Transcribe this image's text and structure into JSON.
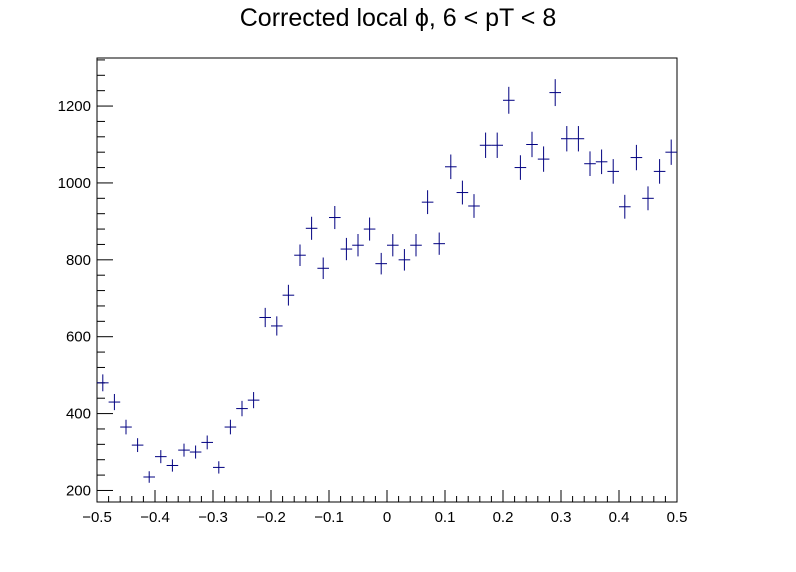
{
  "chart_data": {
    "type": "scatter",
    "title": "Corrected local ϕ, 6 < pT < 8",
    "xlabel": "",
    "ylabel": "",
    "xlim": [
      -0.5,
      0.5
    ],
    "ylim": [
      170,
      1325
    ],
    "x_bin_width": 0.02,
    "x_ticks": [
      "−0.5",
      "−0.4",
      "−0.3",
      "−0.2",
      "−0.1",
      "0",
      "0.1",
      "0.2",
      "0.3",
      "0.4",
      "0.5"
    ],
    "x_tick_values": [
      -0.5,
      -0.4,
      -0.3,
      -0.2,
      -0.1,
      0,
      0.1,
      0.2,
      0.3,
      0.4,
      0.5
    ],
    "y_ticks": [
      "200",
      "400",
      "600",
      "800",
      "1000",
      "1200"
    ],
    "y_tick_values": [
      200,
      400,
      600,
      800,
      1000,
      1200
    ],
    "grid": false,
    "legend": "none",
    "marker_color": "#000080",
    "series": [
      {
        "x": [
          -0.49,
          -0.47,
          -0.45,
          -0.43,
          -0.41,
          -0.39,
          -0.37,
          -0.35,
          -0.33,
          -0.31,
          -0.29,
          -0.27,
          -0.25,
          -0.23,
          -0.21,
          -0.19,
          -0.17,
          -0.15,
          -0.13,
          -0.11,
          -0.09,
          -0.07,
          -0.05,
          -0.03,
          -0.01,
          0.01,
          0.03,
          0.05,
          0.07,
          0.09,
          0.11,
          0.13,
          0.15,
          0.17,
          0.19,
          0.21,
          0.23,
          0.25,
          0.27,
          0.29,
          0.31,
          0.33,
          0.35,
          0.37,
          0.39,
          0.41,
          0.43,
          0.45,
          0.47,
          0.49
        ],
        "y": [
          480,
          430,
          365,
          318,
          235,
          288,
          265,
          305,
          300,
          325,
          260,
          365,
          413,
          435,
          650,
          628,
          708,
          812,
          882,
          778,
          910,
          828,
          838,
          880,
          790,
          838,
          800,
          838,
          950,
          842,
          1042,
          975,
          940,
          1098,
          1098,
          1215,
          1040,
          1100,
          1062,
          1235,
          1115,
          1115,
          1050,
          1055,
          1030,
          938,
          1066,
          960,
          1030,
          1080
        ],
        "yerr": [
          22,
          21,
          19,
          18,
          15,
          17,
          16,
          17,
          17,
          18,
          16,
          19,
          20,
          21,
          25,
          25,
          27,
          28,
          30,
          28,
          30,
          29,
          29,
          30,
          28,
          29,
          28,
          29,
          31,
          29,
          32,
          31,
          31,
          33,
          33,
          35,
          32,
          33,
          33,
          35,
          33,
          33,
          32,
          32,
          32,
          31,
          33,
          31,
          32,
          33
        ]
      }
    ]
  }
}
